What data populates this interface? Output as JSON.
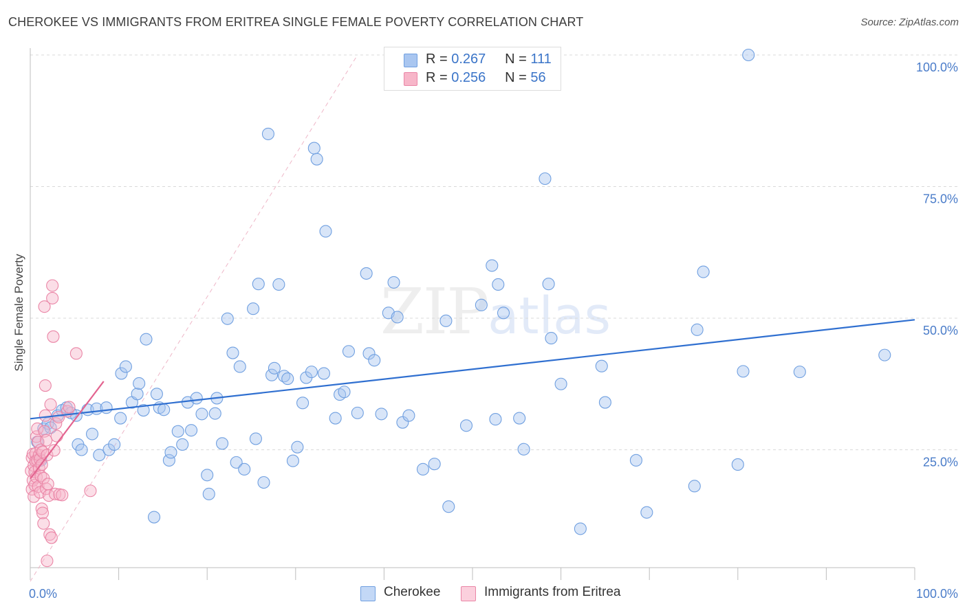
{
  "header": {
    "title": "CHEROKEE VS IMMIGRANTS FROM ERITREA SINGLE FEMALE POVERTY CORRELATION CHART",
    "source": "Source: ZipAtlas.com"
  },
  "watermark": {
    "zip": "ZIP",
    "atlas": "atlas"
  },
  "legend_top": {
    "rows": [
      {
        "r_label": "R =",
        "r_value": "0.267",
        "n_label": "N =",
        "n_value": "111",
        "color": "#a9c6f0"
      },
      {
        "r_label": "R =",
        "r_value": "0.256",
        "n_label": "N =",
        "n_value": "56",
        "color": "#f7b6c9"
      }
    ]
  },
  "legend_bottom": {
    "items": [
      {
        "label": "Cherokee",
        "color": "#a9c6f0"
      },
      {
        "label": "Immigrants from Eritrea",
        "color": "#f7b6c9"
      }
    ]
  },
  "chart_data": {
    "type": "scatter",
    "title": "CHEROKEE VS IMMIGRANTS FROM ERITREA SINGLE FEMALE POVERTY CORRELATION CHART",
    "xlabel": "",
    "ylabel": "Single Female Poverty",
    "xlim": [
      0,
      100
    ],
    "ylim": [
      0,
      105
    ],
    "x_tick_labels": [
      "0.0%",
      "100.0%"
    ],
    "y_tick_labels": [
      "25.0%",
      "50.0%",
      "75.0%",
      "100.0%"
    ],
    "y_ticks": [
      25,
      50,
      75,
      100
    ],
    "grid": true,
    "legend_position": "top-center",
    "series": [
      {
        "name": "Cherokee",
        "color": "#6f9fe0",
        "fill": "#a9c6f0",
        "trend": {
          "x": [
            0,
            100
          ],
          "y": [
            30.9,
            49.7
          ],
          "color": "#2f6fd0"
        },
        "points": [
          [
            0.8,
            26.5
          ],
          [
            1.2,
            23
          ],
          [
            1.5,
            29
          ],
          [
            2,
            30
          ],
          [
            2.3,
            29.2
          ],
          [
            3.1,
            31.5
          ],
          [
            3.6,
            32.5
          ],
          [
            4.1,
            33
          ],
          [
            4.6,
            32
          ],
          [
            5.2,
            31.5
          ],
          [
            5.4,
            26
          ],
          [
            5.8,
            25
          ],
          [
            6.5,
            32.6
          ],
          [
            7,
            28
          ],
          [
            7.5,
            32.8
          ],
          [
            7.8,
            24
          ],
          [
            8.6,
            33
          ],
          [
            8.9,
            25
          ],
          [
            9.5,
            26
          ],
          [
            10.2,
            31
          ],
          [
            10.3,
            39.5
          ],
          [
            10.8,
            40.8
          ],
          [
            11.5,
            34
          ],
          [
            12.1,
            35.6
          ],
          [
            12.3,
            37.6
          ],
          [
            12.8,
            32.5
          ],
          [
            13.1,
            46
          ],
          [
            14,
            12.2
          ],
          [
            14.3,
            35.6
          ],
          [
            14.6,
            33
          ],
          [
            15.1,
            32.6
          ],
          [
            15.7,
            23
          ],
          [
            15.9,
            24.5
          ],
          [
            16.7,
            28.5
          ],
          [
            17.2,
            26
          ],
          [
            17.8,
            34
          ],
          [
            18.2,
            28.7
          ],
          [
            18.8,
            34.8
          ],
          [
            19.4,
            31.8
          ],
          [
            20,
            20.2
          ],
          [
            20.2,
            16.6
          ],
          [
            20.9,
            31.9
          ],
          [
            21.1,
            34.8
          ],
          [
            21.7,
            26.2
          ],
          [
            22.3,
            49.9
          ],
          [
            22.9,
            43.4
          ],
          [
            23.3,
            22.6
          ],
          [
            23.7,
            40.8
          ],
          [
            24.2,
            21.3
          ],
          [
            25.2,
            51.8
          ],
          [
            25.5,
            27.1
          ],
          [
            25.8,
            56.5
          ],
          [
            26.4,
            18.8
          ],
          [
            26.9,
            85
          ],
          [
            27.3,
            39.2
          ],
          [
            27.6,
            40.5
          ],
          [
            28.1,
            56.4
          ],
          [
            28.7,
            39
          ],
          [
            29.1,
            38.5
          ],
          [
            29.7,
            22.9
          ],
          [
            30.2,
            25.5
          ],
          [
            30.8,
            33.9
          ],
          [
            31.2,
            38.7
          ],
          [
            31.8,
            39.8
          ],
          [
            32.1,
            82.3
          ],
          [
            32.4,
            80.2
          ],
          [
            33.2,
            39.5
          ],
          [
            33.4,
            66.5
          ],
          [
            34.5,
            31
          ],
          [
            35,
            35.5
          ],
          [
            35.5,
            36
          ],
          [
            36,
            43.7
          ],
          [
            37,
            32
          ],
          [
            38,
            58.5
          ],
          [
            38.3,
            43.3
          ],
          [
            38.9,
            42
          ],
          [
            39.7,
            31.8
          ],
          [
            40.5,
            51
          ],
          [
            41.1,
            56.8
          ],
          [
            41.5,
            50.2
          ],
          [
            42.1,
            30.2
          ],
          [
            42.8,
            31.5
          ],
          [
            44.4,
            21.3
          ],
          [
            45.7,
            22.3
          ],
          [
            47,
            49.5
          ],
          [
            47.3,
            14.2
          ],
          [
            49.3,
            29.6
          ],
          [
            51,
            52.5
          ],
          [
            52.2,
            60
          ],
          [
            52.6,
            30.8
          ],
          [
            52.9,
            56.4
          ],
          [
            53.5,
            51
          ],
          [
            55.3,
            31
          ],
          [
            55.8,
            25.1
          ],
          [
            58.2,
            76.5
          ],
          [
            58.6,
            56.5
          ],
          [
            58.9,
            46.2
          ],
          [
            60,
            37.5
          ],
          [
            62.2,
            10
          ],
          [
            64.6,
            40.9
          ],
          [
            65,
            34
          ],
          [
            68.5,
            23
          ],
          [
            69.7,
            13.1
          ],
          [
            75.1,
            18.1
          ],
          [
            75.4,
            47.8
          ],
          [
            76.1,
            58.8
          ],
          [
            80,
            22.2
          ],
          [
            80.6,
            39.9
          ],
          [
            81.2,
            100
          ],
          [
            87,
            39.8
          ],
          [
            96.6,
            43
          ]
        ]
      },
      {
        "name": "Immigrants from Eritrea",
        "color": "#ea85a6",
        "fill": "#f7b6c9",
        "trend": {
          "x": [
            0,
            8.3
          ],
          "y": [
            19.5,
            38
          ],
          "color": "#e3638f"
        },
        "points": [
          [
            0.1,
            21
          ],
          [
            0.2,
            17.5
          ],
          [
            0.2,
            23.5
          ],
          [
            0.3,
            19.2
          ],
          [
            0.3,
            24.2
          ],
          [
            0.4,
            22
          ],
          [
            0.4,
            16.1
          ],
          [
            0.5,
            20.8
          ],
          [
            0.5,
            18.3
          ],
          [
            0.6,
            22.9
          ],
          [
            0.6,
            24.3
          ],
          [
            0.7,
            19.8
          ],
          [
            0.7,
            27.5
          ],
          [
            0.8,
            23
          ],
          [
            0.8,
            29
          ],
          [
            0.9,
            18
          ],
          [
            0.9,
            26.5
          ],
          [
            1,
            21.5
          ],
          [
            1,
            24
          ],
          [
            1.1,
            23.2
          ],
          [
            1.1,
            16.9
          ],
          [
            1.2,
            20
          ],
          [
            1.2,
            25
          ],
          [
            1.3,
            22.2
          ],
          [
            1.3,
            13.8
          ],
          [
            1.4,
            24.6
          ],
          [
            1.4,
            13
          ],
          [
            1.5,
            19.6
          ],
          [
            1.5,
            11
          ],
          [
            1.6,
            28.5
          ],
          [
            1.6,
            52.2
          ],
          [
            1.7,
            31.5
          ],
          [
            1.7,
            37.2
          ],
          [
            1.8,
            17.6
          ],
          [
            1.8,
            26.8
          ],
          [
            1.9,
            24
          ],
          [
            1.9,
            3.9
          ],
          [
            2,
            18.5
          ],
          [
            2.1,
            16.3
          ],
          [
            2.2,
            8.9
          ],
          [
            2.3,
            33.6
          ],
          [
            2.4,
            8.3
          ],
          [
            2.5,
            53.8
          ],
          [
            2.5,
            56.2
          ],
          [
            2.6,
            46.5
          ],
          [
            2.7,
            24.9
          ],
          [
            2.8,
            16.6
          ],
          [
            2.9,
            30
          ],
          [
            3,
            27.6
          ],
          [
            3.2,
            31.2
          ],
          [
            3.3,
            16.5
          ],
          [
            3.6,
            16.4
          ],
          [
            4.2,
            32.3
          ],
          [
            4.4,
            33.1
          ],
          [
            5.2,
            43.3
          ],
          [
            6.8,
            17.2
          ]
        ]
      }
    ]
  }
}
